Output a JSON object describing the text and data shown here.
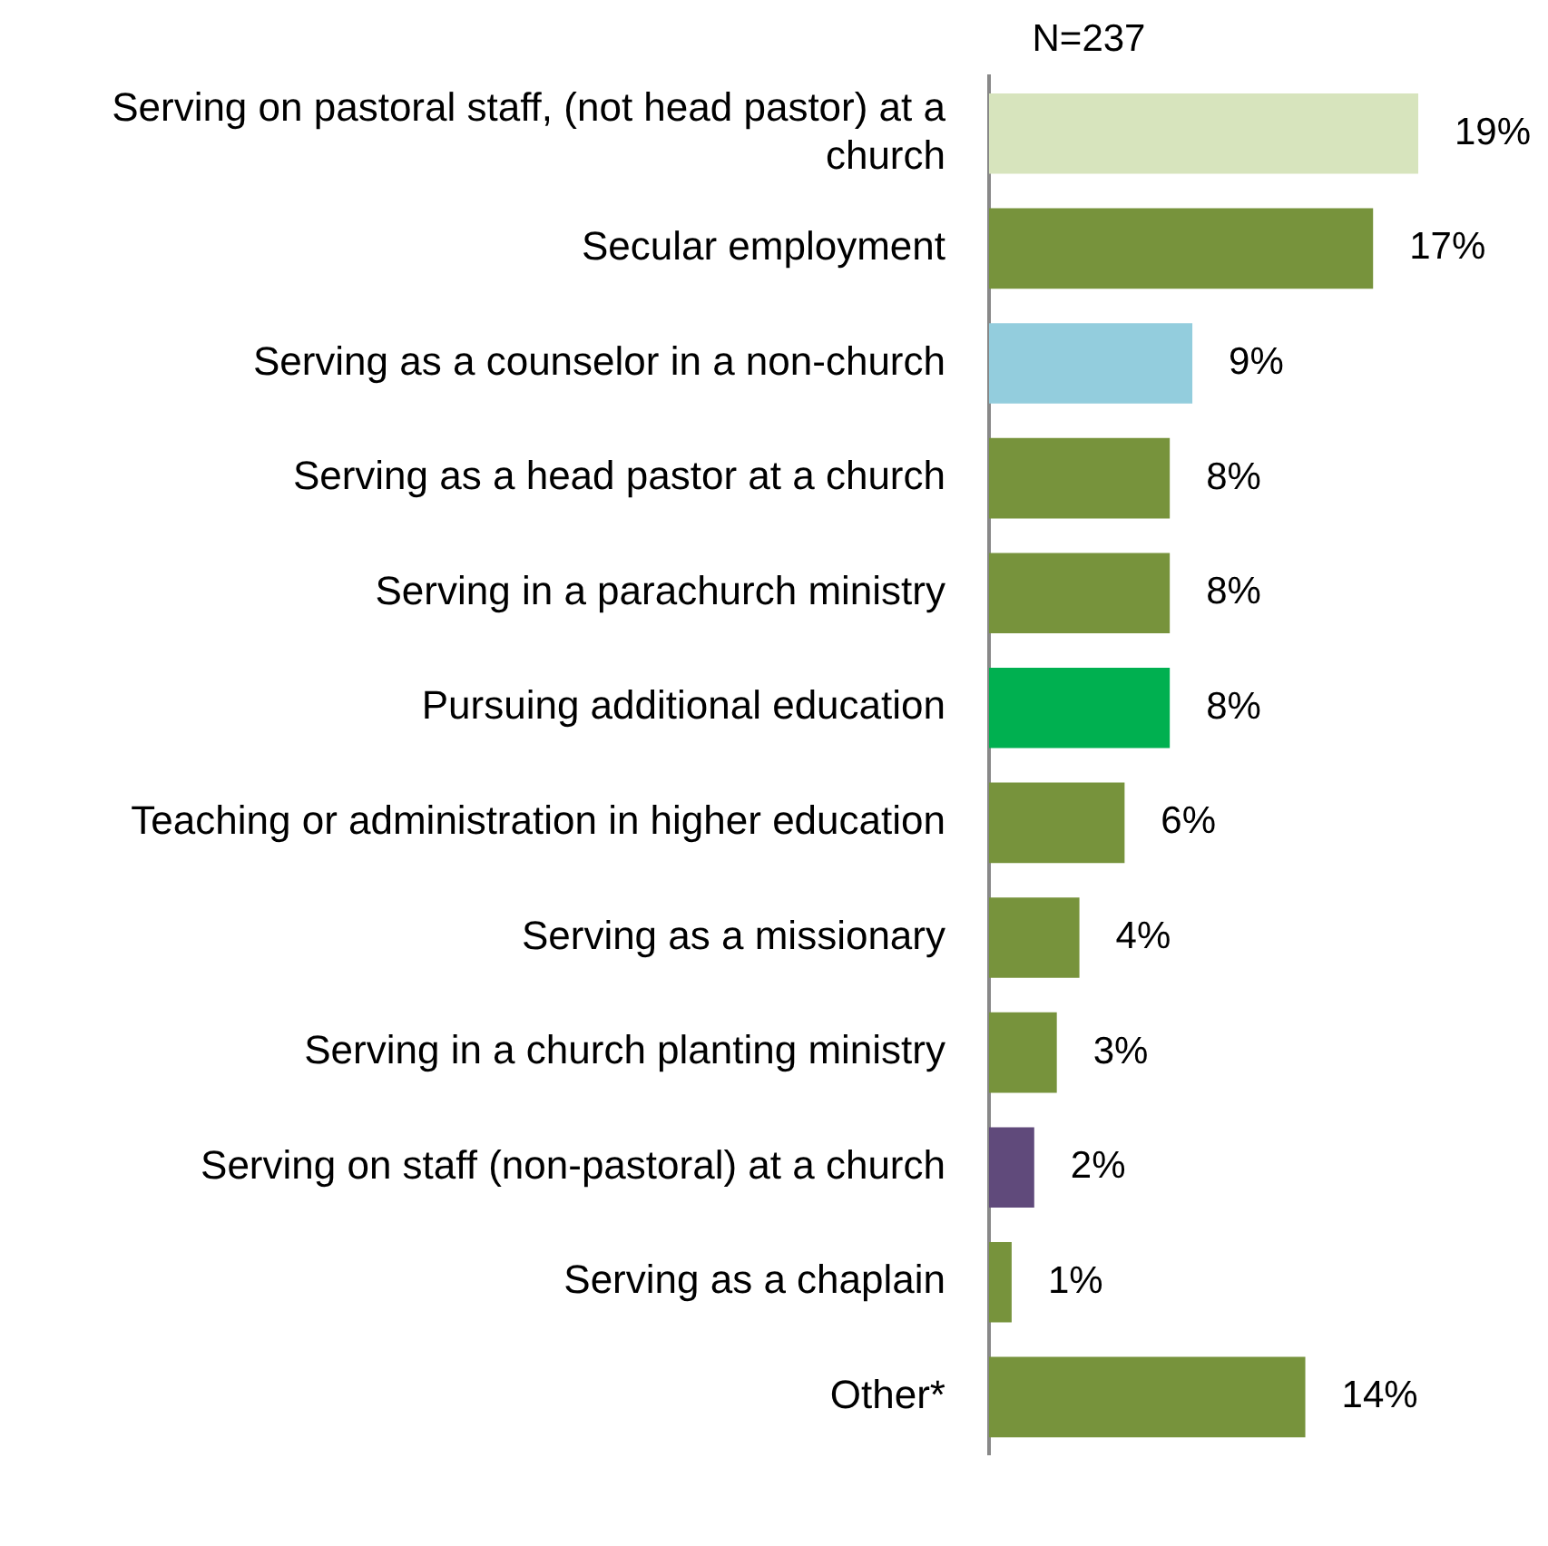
{
  "chart_data": {
    "type": "bar",
    "orientation": "horizontal",
    "subtitle": "N=237",
    "categories": [
      "Serving on pastoral staff, (not head pastor) at a church",
      "Secular employment",
      "Serving as a counselor in a non-church",
      "Serving as a head pastor at a church",
      "Serving in a parachurch ministry",
      "Pursuing additional education",
      "Teaching or administration in higher education",
      "Serving as a missionary",
      "Serving in a church planting ministry",
      "Serving on staff (non-pastoral) at a church",
      "Serving as a chaplain",
      "Other*"
    ],
    "values": [
      19,
      17,
      9,
      8,
      8,
      8,
      6,
      4,
      3,
      2,
      1,
      14
    ],
    "colors": [
      "#d7e4bd",
      "#77933c",
      "#93cddd",
      "#77933c",
      "#77933c",
      "#00b050",
      "#77933c",
      "#77933c",
      "#77933c",
      "#604a7b",
      "#77933c",
      "#77933c"
    ],
    "value_labels": [
      "19%",
      "17%",
      "9%",
      "8%",
      "8%",
      "8%",
      "6%",
      "4%",
      "3%",
      "2%",
      "1%",
      "14%"
    ],
    "grid": false,
    "legend": false
  }
}
